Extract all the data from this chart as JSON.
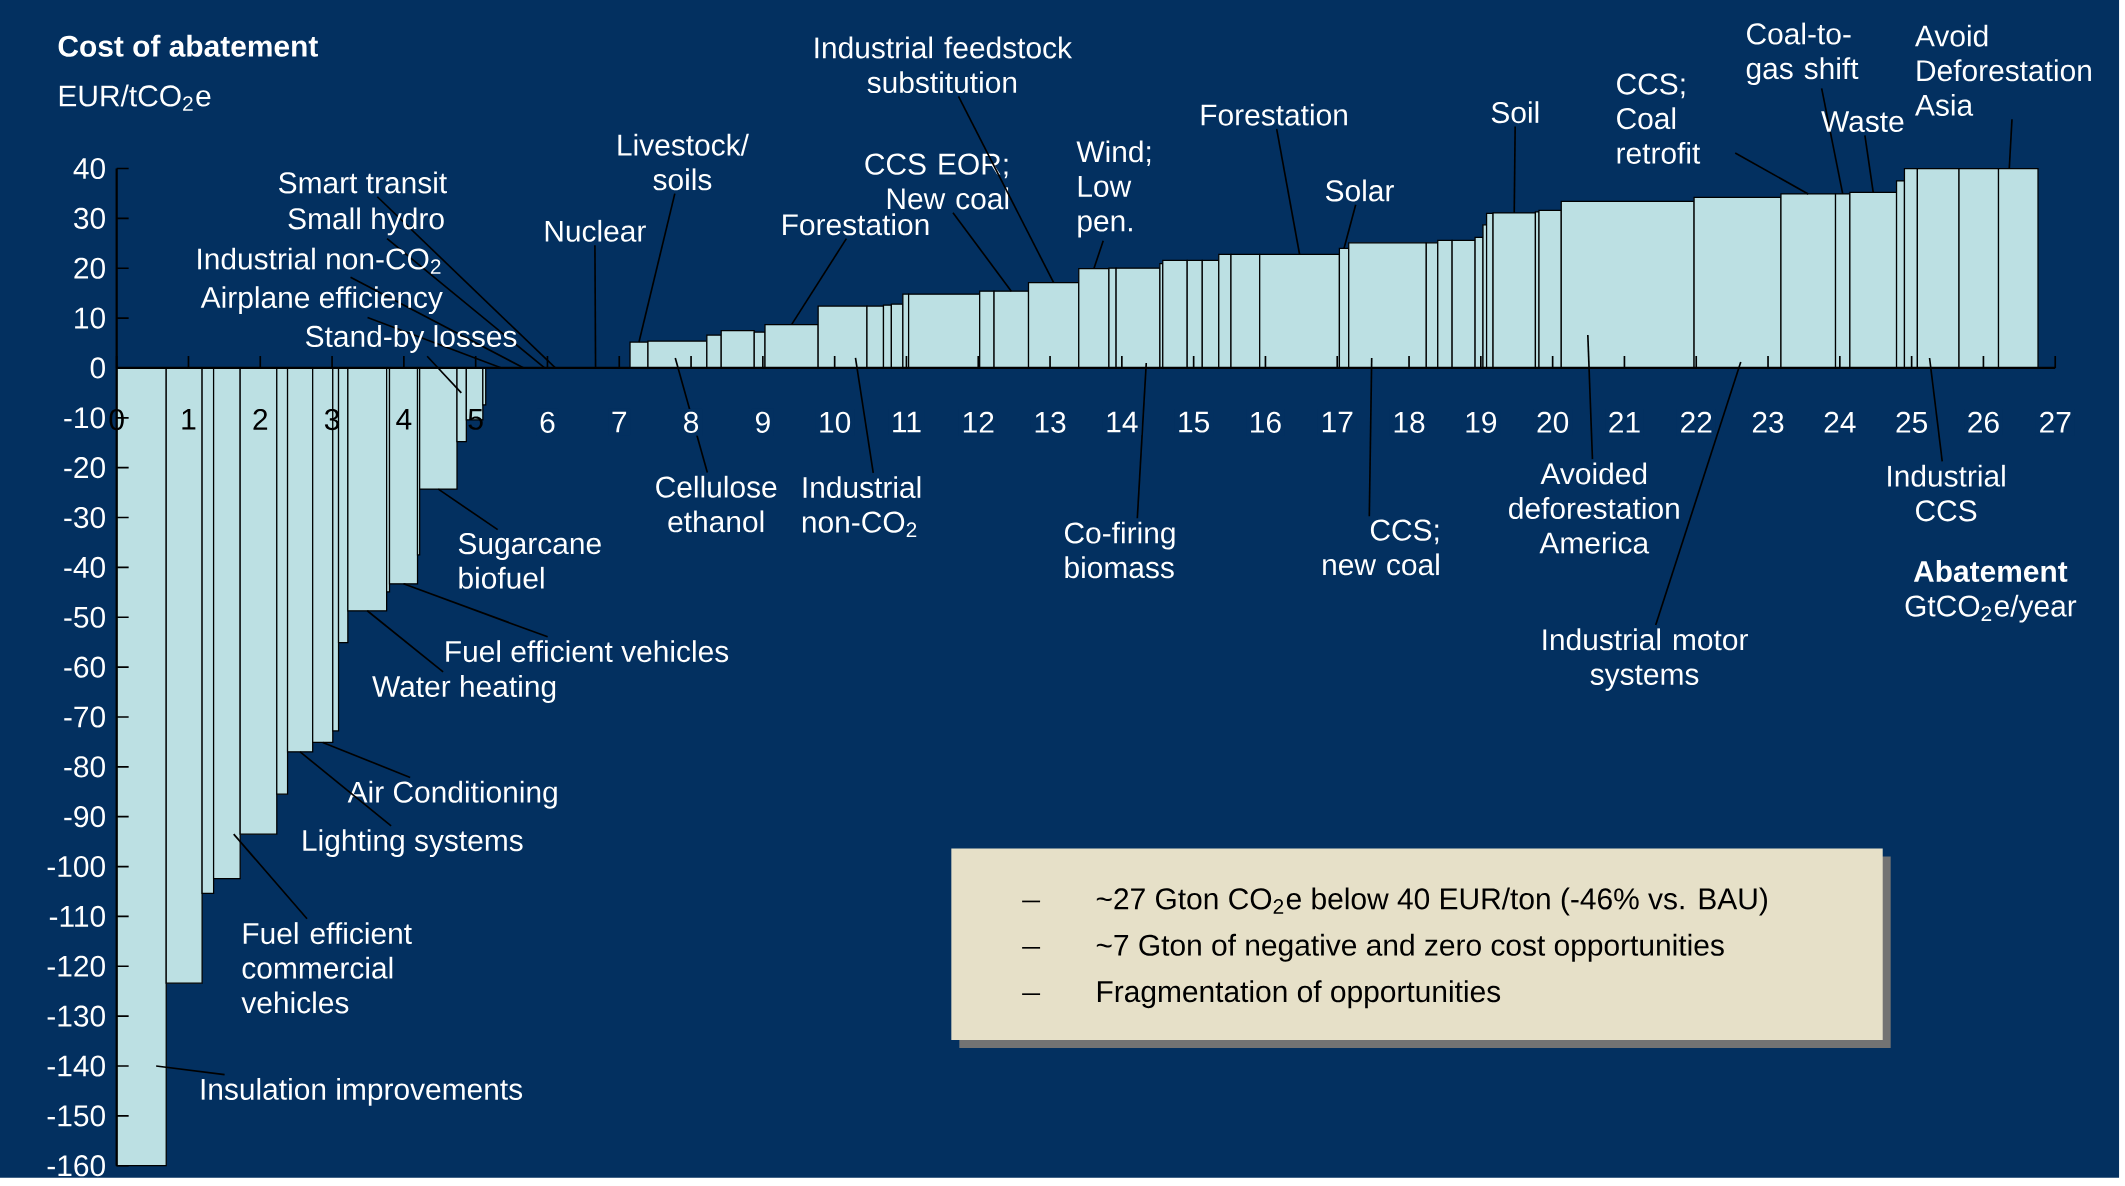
{
  "chart_data": {
    "type": "bar",
    "title": "Cost of abatement",
    "ylabel": "EUR/tCO$_{2}$e",
    "xlabel": "**Abatement** GtCO$_{2}$e/year",
    "color": "#bce0e3",
    "x": [
      0.345,
      0.94,
      1.27,
      1.535,
      1.975,
      2.305,
      2.555,
      2.87,
      3.05,
      3.155,
      3.49,
      3.78,
      3.995,
      4.205,
      4.48,
      4.805,
      4.985,
      5.12,
      6.145,
      7.275,
      7.81,
      8.32,
      8.65,
      8.955,
      9.4,
      10.11,
      10.565,
      10.735,
      10.87,
      10.99,
      11.525,
      12.12,
      12.46,
      13.05,
      13.61,
      13.87,
      14.225,
      14.55,
      14.74,
      15.015,
      15.235,
      15.435,
      15.72,
      16.475,
      17.095,
      17.7,
      18.32,
      18.5,
      18.76,
      18.975,
      19.055,
      19.125,
      19.465,
      19.785,
      19.965,
      21.045,
      22.575,
      23.56,
      24.04,
      24.465,
      24.845,
      24.99,
      25.37,
      25.935,
      26.485
    ],
    "values": [
      -160,
      -123.4,
      -105.4,
      -102.4,
      -93.5,
      -85.5,
      -77,
      -75.1,
      -72.8,
      -55.1,
      -48.7,
      -44.9,
      -43.3,
      -37.5,
      -24.3,
      -14.8,
      -10.4,
      -7.4,
      null,
      5.2,
      5.4,
      6.6,
      7.5,
      7.2,
      8.7,
      12.4,
      12.4,
      12.6,
      12.8,
      14.8,
      14.8,
      15.4,
      15.4,
      17.1,
      19.9,
      20.0,
      20.0,
      20.9,
      21.6,
      21.6,
      21.6,
      22.8,
      22.8,
      22.8,
      24.0,
      25.1,
      25.1,
      25.6,
      25.6,
      26.2,
      28.7,
      31.0,
      31.1,
      31.3,
      31.6,
      33.4,
      34.2,
      34.9,
      34.9,
      35.2,
      37.5,
      40,
      40,
      40,
      40
    ],
    "xlim": [
      0,
      27
    ],
    "ylim": [
      -160,
      40
    ],
    "xticks": [
      0,
      1,
      2,
      3,
      4,
      5,
      6,
      7,
      8,
      9,
      10,
      11,
      12,
      13,
      14,
      15,
      16,
      17,
      18,
      19,
      20,
      21,
      22,
      23,
      24,
      25,
      26,
      27
    ],
    "yticks": [
      -160,
      -150,
      -140,
      -130,
      -120,
      -110,
      -100,
      -90,
      -80,
      -70,
      -60,
      -50,
      -40,
      -30,
      -20,
      -10,
      0,
      10,
      20,
      30,
      40
    ],
    "annotations": [
      "Smart transit",
      "Small hydro",
      "Industrial non-CO$_{2}$",
      "Airplane efficiency",
      "Stand-by losses",
      "Nuclear",
      {
        "text": "Livestock/ soils",
        "x": 7.275,
        "y": 5.2
      },
      "Cellulose ethanol",
      {
        "text": "Forestation",
        "x": 9.4,
        "y": 8.7
      },
      "Industrial non-CO$_{2}$",
      {
        "text": "CCS EOR; New coal",
        "x": 12.46,
        "y": 15.4
      },
      {
        "text": "Industrial feedstock substitution",
        "x": 13.05,
        "y": 17.1
      },
      {
        "text": "Wind; Low pen.",
        "x": 13.61,
        "y": 19.9
      },
      {
        "text": "Forestation",
        "x": 16.475,
        "y": 22.8
      },
      "Co-firing biomass",
      {
        "text": "Solar",
        "x": 17.095,
        "y": 24.0
      },
      "CCS; new coal",
      {
        "text": "Soil",
        "x": 19.465,
        "y": 31.1
      },
      {
        "text": "CCS; Coal retrofit",
        "x": 23.56,
        "y": 34.9
      },
      {
        "text": "Coal-to- gas shift",
        "x": 24.04,
        "y": 34.9
      },
      {
        "text": "Waste",
        "x": 24.465,
        "y": 35.2
      },
      "Avoid Deforestation Asia",
      "Avoided deforestation America",
      "Industrial motor systems",
      "Industrial CCS",
      {
        "text": "Sugarcane biofuel",
        "x": 4.48,
        "y": -24.3
      },
      {
        "text": "Fuel efficient vehicles",
        "x": 3.995,
        "y": -43.3
      },
      {
        "text": "Water heating",
        "x": 3.49,
        "y": -48.7
      },
      {
        "text": "Air Conditioning",
        "x": 2.87,
        "y": -75.1
      },
      {
        "text": "Lighting systems",
        "x": 2.555,
        "y": -77
      },
      "Fuel efficient commercial vehicles",
      "Insulation improvements",
      "~27 Gton CO$_{2}$e below 40 EUR/ton (-46% vs. BAU)",
      "~7 Gton of negative and zero cost opportunities",
      "Fragmentation of opportunities"
    ]
  }
}
